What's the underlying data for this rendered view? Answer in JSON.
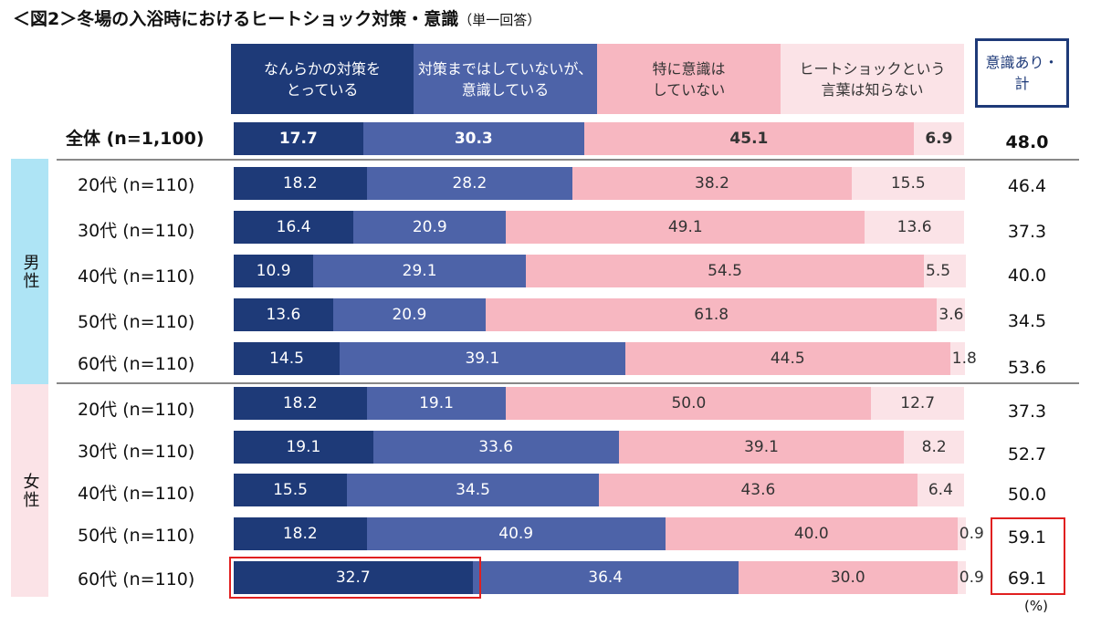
{
  "title": "＜図2＞冬場の入浴時におけるヒートショック対策・意識",
  "subtitle": "（単一回答）",
  "unit": "(%)",
  "total_header": "意識あり・\n計",
  "groups": [
    {
      "label": "男性",
      "color": "#aee4f5"
    },
    {
      "label": "女性",
      "color": "#fbe3e7"
    }
  ],
  "colors": {
    "s0": "#1e3a78",
    "s1": "#4d63a8",
    "s2": "#f7b7c1",
    "s3": "#fbe3e7",
    "highlight": "#e02020"
  },
  "chart_data": {
    "type": "bar",
    "orientation": "horizontal",
    "stacked": true,
    "xlim": [
      0,
      100
    ],
    "series": [
      {
        "name": "なんらかの対策を\nとっている"
      },
      {
        "name": "対策まではしていないが、\n意識している"
      },
      {
        "name": "特に意識は\nしていない"
      },
      {
        "name": "ヒートショックという\n言葉は知らない"
      }
    ],
    "rows": [
      {
        "label": "全体 (n=1,100)",
        "values": [
          17.7,
          30.3,
          45.1,
          6.9
        ],
        "total": "48.0",
        "bold": true
      },
      {
        "label": "20代 (n=110)",
        "values": [
          18.2,
          28.2,
          38.2,
          15.5
        ],
        "total": "46.4"
      },
      {
        "label": "30代 (n=110)",
        "values": [
          16.4,
          20.9,
          49.1,
          13.6
        ],
        "total": "37.3"
      },
      {
        "label": "40代 (n=110)",
        "values": [
          10.9,
          29.1,
          54.5,
          5.5
        ],
        "total": "40.0"
      },
      {
        "label": "50代 (n=110)",
        "values": [
          13.6,
          20.9,
          61.8,
          3.6
        ],
        "total": "34.5"
      },
      {
        "label": "60代 (n=110)",
        "values": [
          14.5,
          39.1,
          44.5,
          1.8
        ],
        "total": "53.6"
      },
      {
        "label": "20代 (n=110)",
        "values": [
          18.2,
          19.1,
          50.0,
          12.7
        ],
        "total": "37.3"
      },
      {
        "label": "30代 (n=110)",
        "values": [
          19.1,
          33.6,
          39.1,
          8.2
        ],
        "total": "52.7"
      },
      {
        "label": "40代 (n=110)",
        "values": [
          15.5,
          34.5,
          43.6,
          6.4
        ],
        "total": "50.0"
      },
      {
        "label": "50代 (n=110)",
        "values": [
          18.2,
          40.9,
          40.0,
          0.9
        ],
        "total": "59.1"
      },
      {
        "label": "60代 (n=110)",
        "values": [
          32.7,
          36.4,
          30.0,
          0.9
        ],
        "total": "69.1"
      }
    ]
  }
}
